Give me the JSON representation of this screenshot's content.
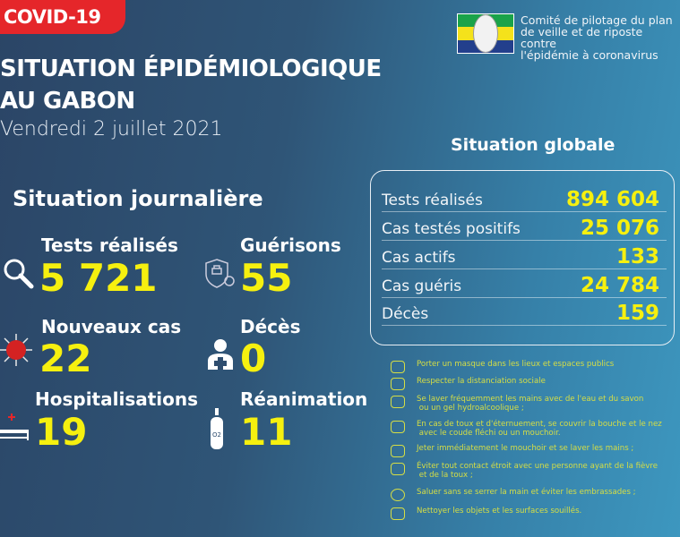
{
  "badge": "COVID-19",
  "title": [
    "SITUATION ÉPIDÉMIOLOGIQUE",
    "AU GABON"
  ],
  "date": "Vendredi 2 juillet 2021",
  "committee": [
    "Comité de pilotage du plan",
    "de veille et de riposte contre",
    "l'épidémie à coronavirus"
  ],
  "daily": {
    "heading": "Situation journalière",
    "items": [
      {
        "label": "Tests réalisés",
        "value": "5 721",
        "icon": "magnifier-icon"
      },
      {
        "label": "Guérisons",
        "value": "55",
        "icon": "shield-cross-virus-icon"
      },
      {
        "label": "Nouveaux cas",
        "value": "22",
        "icon": "virus-icon"
      },
      {
        "label": "Décès",
        "value": "0",
        "icon": "person-cross-icon"
      },
      {
        "label": "Hospitalisations",
        "value": "19",
        "icon": "hospital-bed-icon"
      },
      {
        "label": "Réanimation",
        "value": "11",
        "icon": "oxygen-tank-icon"
      }
    ]
  },
  "global": {
    "heading": "Situation globale",
    "rows": [
      {
        "label": "Tests réalisés",
        "value": "894 604"
      },
      {
        "label": "Cas testés positifs",
        "value": "25 076"
      },
      {
        "label": "Cas actifs",
        "value": "133"
      },
      {
        "label": "Cas guéris",
        "value": "24 784"
      },
      {
        "label": "Décès",
        "value": "159"
      }
    ]
  },
  "tips": [
    "Porter un masque dans les lieux et espaces publics",
    "Respecter la distanciation sociale",
    "Se laver fréquemment les mains avec de l'eau et du savon\n ou un gel hydroalcoolique ;",
    "En cas de toux et d'éternuement, se couvrir la bouche et le nez\n avec le coude fléchi ou un mouchoir.",
    "Jeter immédiatement le mouchoir et se laver les mains ;",
    "Éviter tout contact étroit avec une personne ayant de la fièvre\n et de la toux ;",
    "Saluer sans se serrer la main et éviter les embrassades ;",
    "Nettoyer les objets et les surfaces souillés."
  ],
  "colors": {
    "accent": "#f6f00f",
    "badge": "#e5262a",
    "tips": "#d6de45"
  }
}
